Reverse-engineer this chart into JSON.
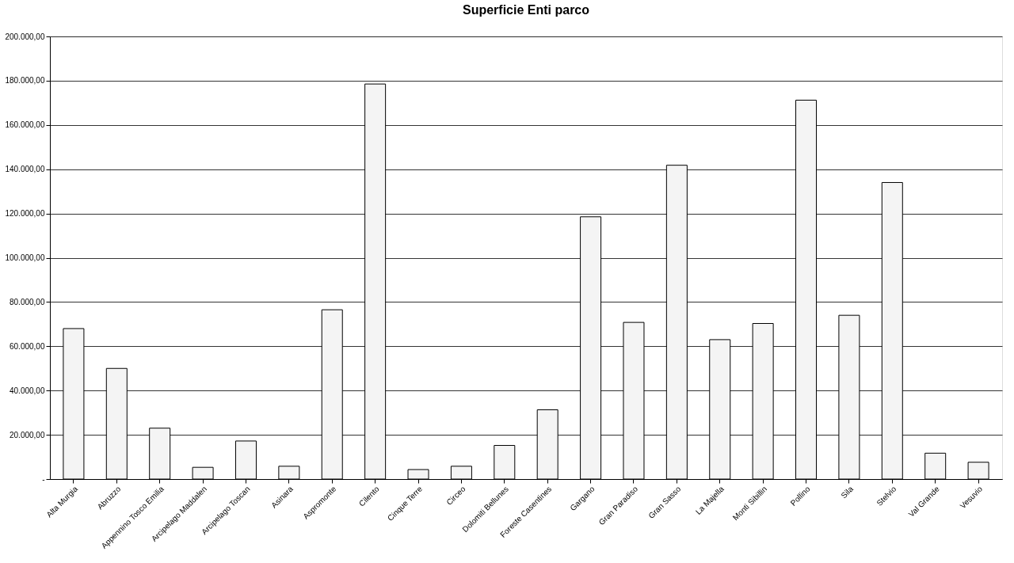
{
  "chart_data": {
    "type": "bar",
    "title": "Superficie Enti parco",
    "categories": [
      "Alta Murgia",
      "Abruzzo",
      "Appennino Tosco Emilia",
      "Arcipelago Maddalen",
      "Arcipelago Toscan",
      "Asinara",
      "Aspromonte",
      "Cilento",
      "Cinque Terre",
      "Circeo",
      "Dolomiti Bellunes",
      "Foreste Casentines",
      "Gargano",
      "Gran Paradiso",
      "Gran Sasso",
      "La Majella",
      "Monti Sibillin",
      "Pollino",
      "Sila",
      "Stelvio",
      "Val Grande",
      "Vesuvio"
    ],
    "values": [
      68000,
      50000,
      23000,
      5300,
      17200,
      5800,
      76500,
      178500,
      4300,
      5800,
      15200,
      31300,
      118500,
      70800,
      141800,
      63000,
      70300,
      171200,
      74000,
      134000,
      11700,
      7600
    ],
    "color": "#f4f4f4",
    "ylim": [
      0,
      200000
    ],
    "yticks": [
      {
        "value": 0,
        "label": "-"
      },
      {
        "value": 20000,
        "label": "20.000,00"
      },
      {
        "value": 40000,
        "label": "40.000,00"
      },
      {
        "value": 60000,
        "label": "60.000,00"
      },
      {
        "value": 80000,
        "label": "80.000,00"
      },
      {
        "value": 100000,
        "label": "100.000,00"
      },
      {
        "value": 120000,
        "label": "120.000,00"
      },
      {
        "value": 140000,
        "label": "140.000,00"
      },
      {
        "value": 160000,
        "label": "160.000,00"
      },
      {
        "value": 180000,
        "label": "180.000,00"
      },
      {
        "value": 200000,
        "label": "200.000,00"
      }
    ],
    "grid": "y"
  }
}
